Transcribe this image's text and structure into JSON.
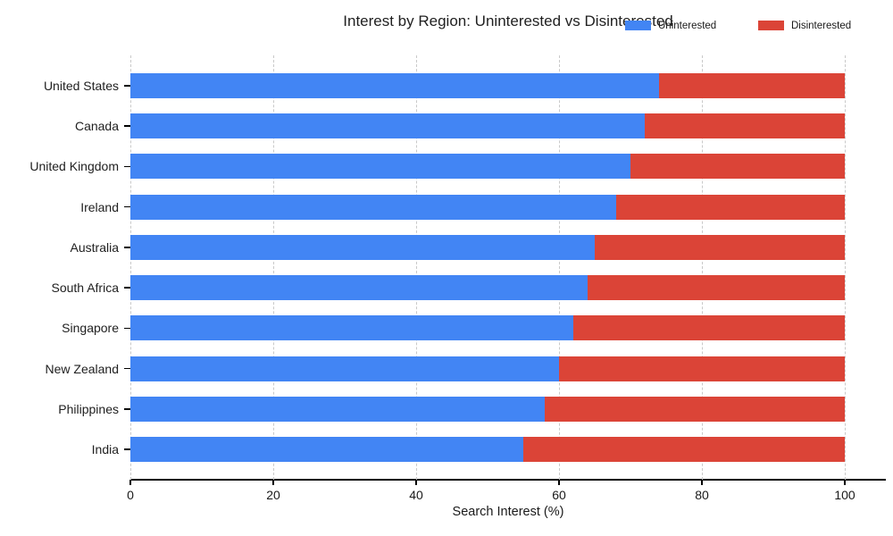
{
  "title": "Interest by Region: Uninterested vs Disinterested",
  "legend": {
    "position": "top-right",
    "entries": [
      {
        "label": "Uninterested",
        "color": "#4285F4"
      },
      {
        "label": "Disinterested",
        "color": "#DB4437"
      }
    ]
  },
  "chart_data": {
    "type": "bar",
    "orientation": "horizontal",
    "stacked": true,
    "title": "Interest by Region: Uninterested vs Disinterested",
    "xlabel": "Search Interest (%)",
    "ylabel": "",
    "categories": [
      "United States",
      "Canada",
      "United Kingdom",
      "Ireland",
      "Australia",
      "South Africa",
      "Singapore",
      "New Zealand",
      "Philippines",
      "India"
    ],
    "series": [
      {
        "name": "Uninterested",
        "color": "#4285F4",
        "values": [
          74,
          72,
          70,
          68,
          65,
          64,
          62,
          60,
          58,
          55
        ]
      },
      {
        "name": "Disinterested",
        "color": "#DB4437",
        "values": [
          26,
          28,
          30,
          32,
          35,
          36,
          38,
          40,
          42,
          45
        ]
      }
    ],
    "xticks": [
      0,
      20,
      40,
      60,
      80,
      100
    ],
    "xlim": [
      0,
      105.7
    ],
    "grid": "vertical-dashed",
    "legend_position": "top-right",
    "background": "#ffffff"
  }
}
